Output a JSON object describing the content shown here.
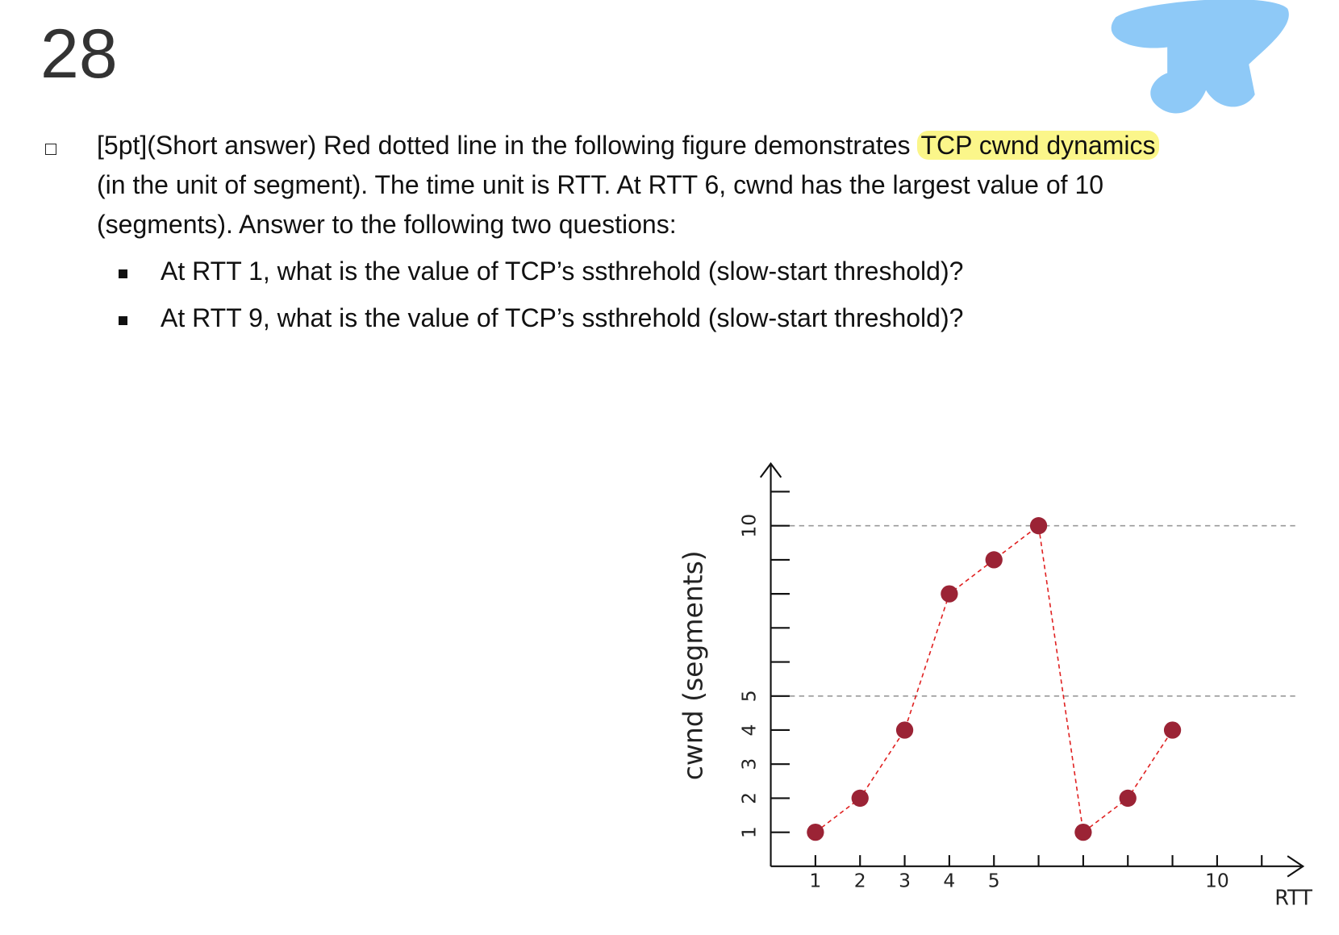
{
  "page_number": "28",
  "question": {
    "lines": [
      [
        "[5pt](Short answer) Red dotted line in the following figure demonstrates ",
        "TCP cwnd dynamics"
      ],
      "(in the unit of segment). The time unit is RTT. At RTT 6, cwnd has the largest value of 10",
      "(segments). Answer to the following two questions:"
    ],
    "bullets": [
      "At RTT 1, what is the value of TCP’s ssthrehold (slow-start threshold)?",
      "At RTT 9, what is the value of TCP’s ssthrehold (slow-start threshold)?"
    ]
  },
  "chart_data": {
    "type": "line",
    "x": [
      1,
      2,
      3,
      4,
      5,
      6,
      7,
      8,
      9
    ],
    "values": [
      1,
      2,
      4,
      8,
      9,
      10,
      1,
      2,
      4
    ],
    "color": "#e02020",
    "marker_color": "#9b2335",
    "xlabel": "RTT",
    "ylabel": "cwnd (segments)",
    "xlim": [
      0,
      12
    ],
    "ylim": [
      0,
      12
    ],
    "xticks": [
      1,
      2,
      3,
      4,
      5,
      10
    ],
    "xminor": [
      6,
      7,
      8,
      9,
      11
    ],
    "yticks": [
      1,
      2,
      3,
      4,
      5,
      10
    ],
    "yminor": [
      6,
      7,
      8,
      9,
      11
    ],
    "gridlines": [
      5,
      10
    ]
  }
}
